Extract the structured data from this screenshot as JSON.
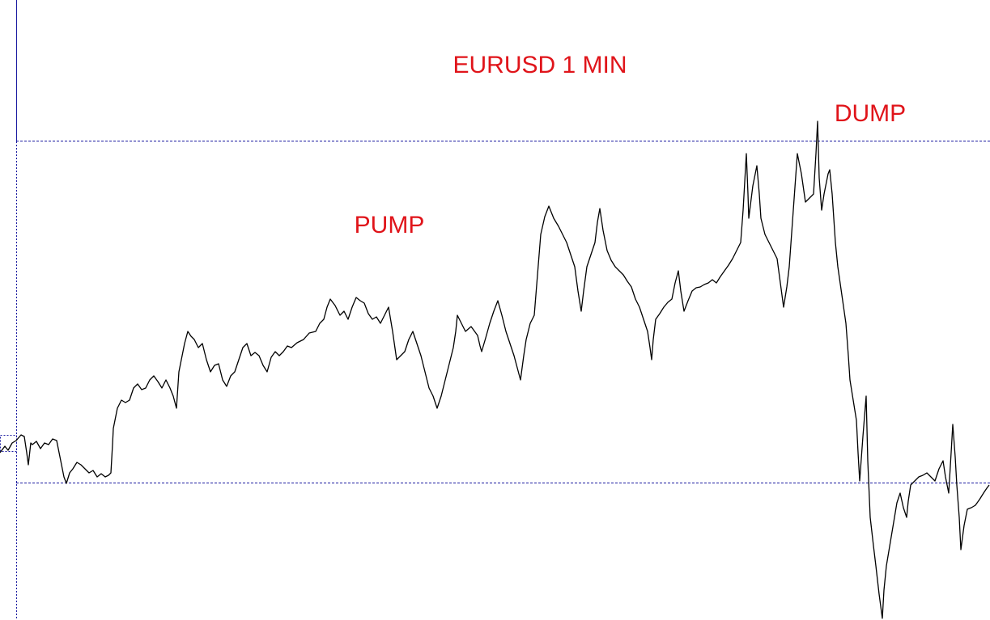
{
  "chart_data": {
    "type": "line",
    "title": "EURUSD 1 MIN",
    "annotations": [
      "PUMP",
      "DUMP"
    ]
  }
}
